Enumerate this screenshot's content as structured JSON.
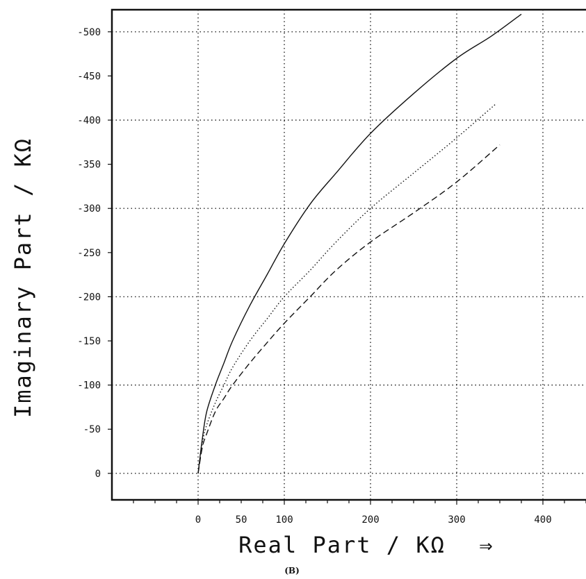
{
  "chart_data": {
    "type": "line",
    "title": "",
    "xlabel": "Real Part / KΩ",
    "ylabel": "Imaginary Part / KΩ",
    "xlabel_arrow": "⇒",
    "panel_label": "(B)",
    "xlim": [
      -100,
      450
    ],
    "ylim": [
      -525,
      30
    ],
    "x_ticks": [
      0,
      50,
      100,
      200,
      300,
      400
    ],
    "x_tick_labels": [
      "0",
      "50",
      "100",
      "200",
      "300",
      "400"
    ],
    "x_grid": [
      0,
      100,
      200,
      300,
      400
    ],
    "y_ticks": [
      0,
      -50,
      -100,
      -150,
      -200,
      -250,
      -300,
      -350,
      -400,
      -450,
      -500
    ],
    "y_tick_labels": [
      "0",
      "-50",
      "-100",
      "-150",
      "-200",
      "-250",
      "-300",
      "-350",
      "-400",
      "-450",
      "-500"
    ],
    "y_grid": [
      0,
      -100,
      -200,
      -300,
      -400,
      -500
    ],
    "grid": true,
    "series": [
      {
        "style": "solid",
        "x": [
          0,
          5,
          10,
          20,
          30,
          40,
          60,
          80,
          100,
          130,
          160,
          200,
          250,
          300,
          340,
          375
        ],
        "y": [
          0,
          -40,
          -70,
          -100,
          -125,
          -150,
          -190,
          -225,
          -260,
          -305,
          -340,
          -385,
          -430,
          -470,
          -495,
          -520
        ]
      },
      {
        "style": "dotted",
        "x": [
          0,
          5,
          10,
          20,
          30,
          40,
          60,
          80,
          100,
          130,
          160,
          200,
          250,
          300,
          345
        ],
        "y": [
          0,
          -35,
          -55,
          -80,
          -100,
          -120,
          -150,
          -175,
          -200,
          -230,
          -262,
          -300,
          -340,
          -380,
          -418
        ]
      },
      {
        "style": "dashed",
        "x": [
          0,
          5,
          10,
          20,
          30,
          40,
          60,
          80,
          100,
          130,
          160,
          200,
          250,
          300,
          350
        ],
        "y": [
          0,
          -30,
          -45,
          -70,
          -85,
          -100,
          -125,
          -148,
          -170,
          -200,
          -230,
          -262,
          -295,
          -330,
          -372
        ]
      }
    ]
  }
}
